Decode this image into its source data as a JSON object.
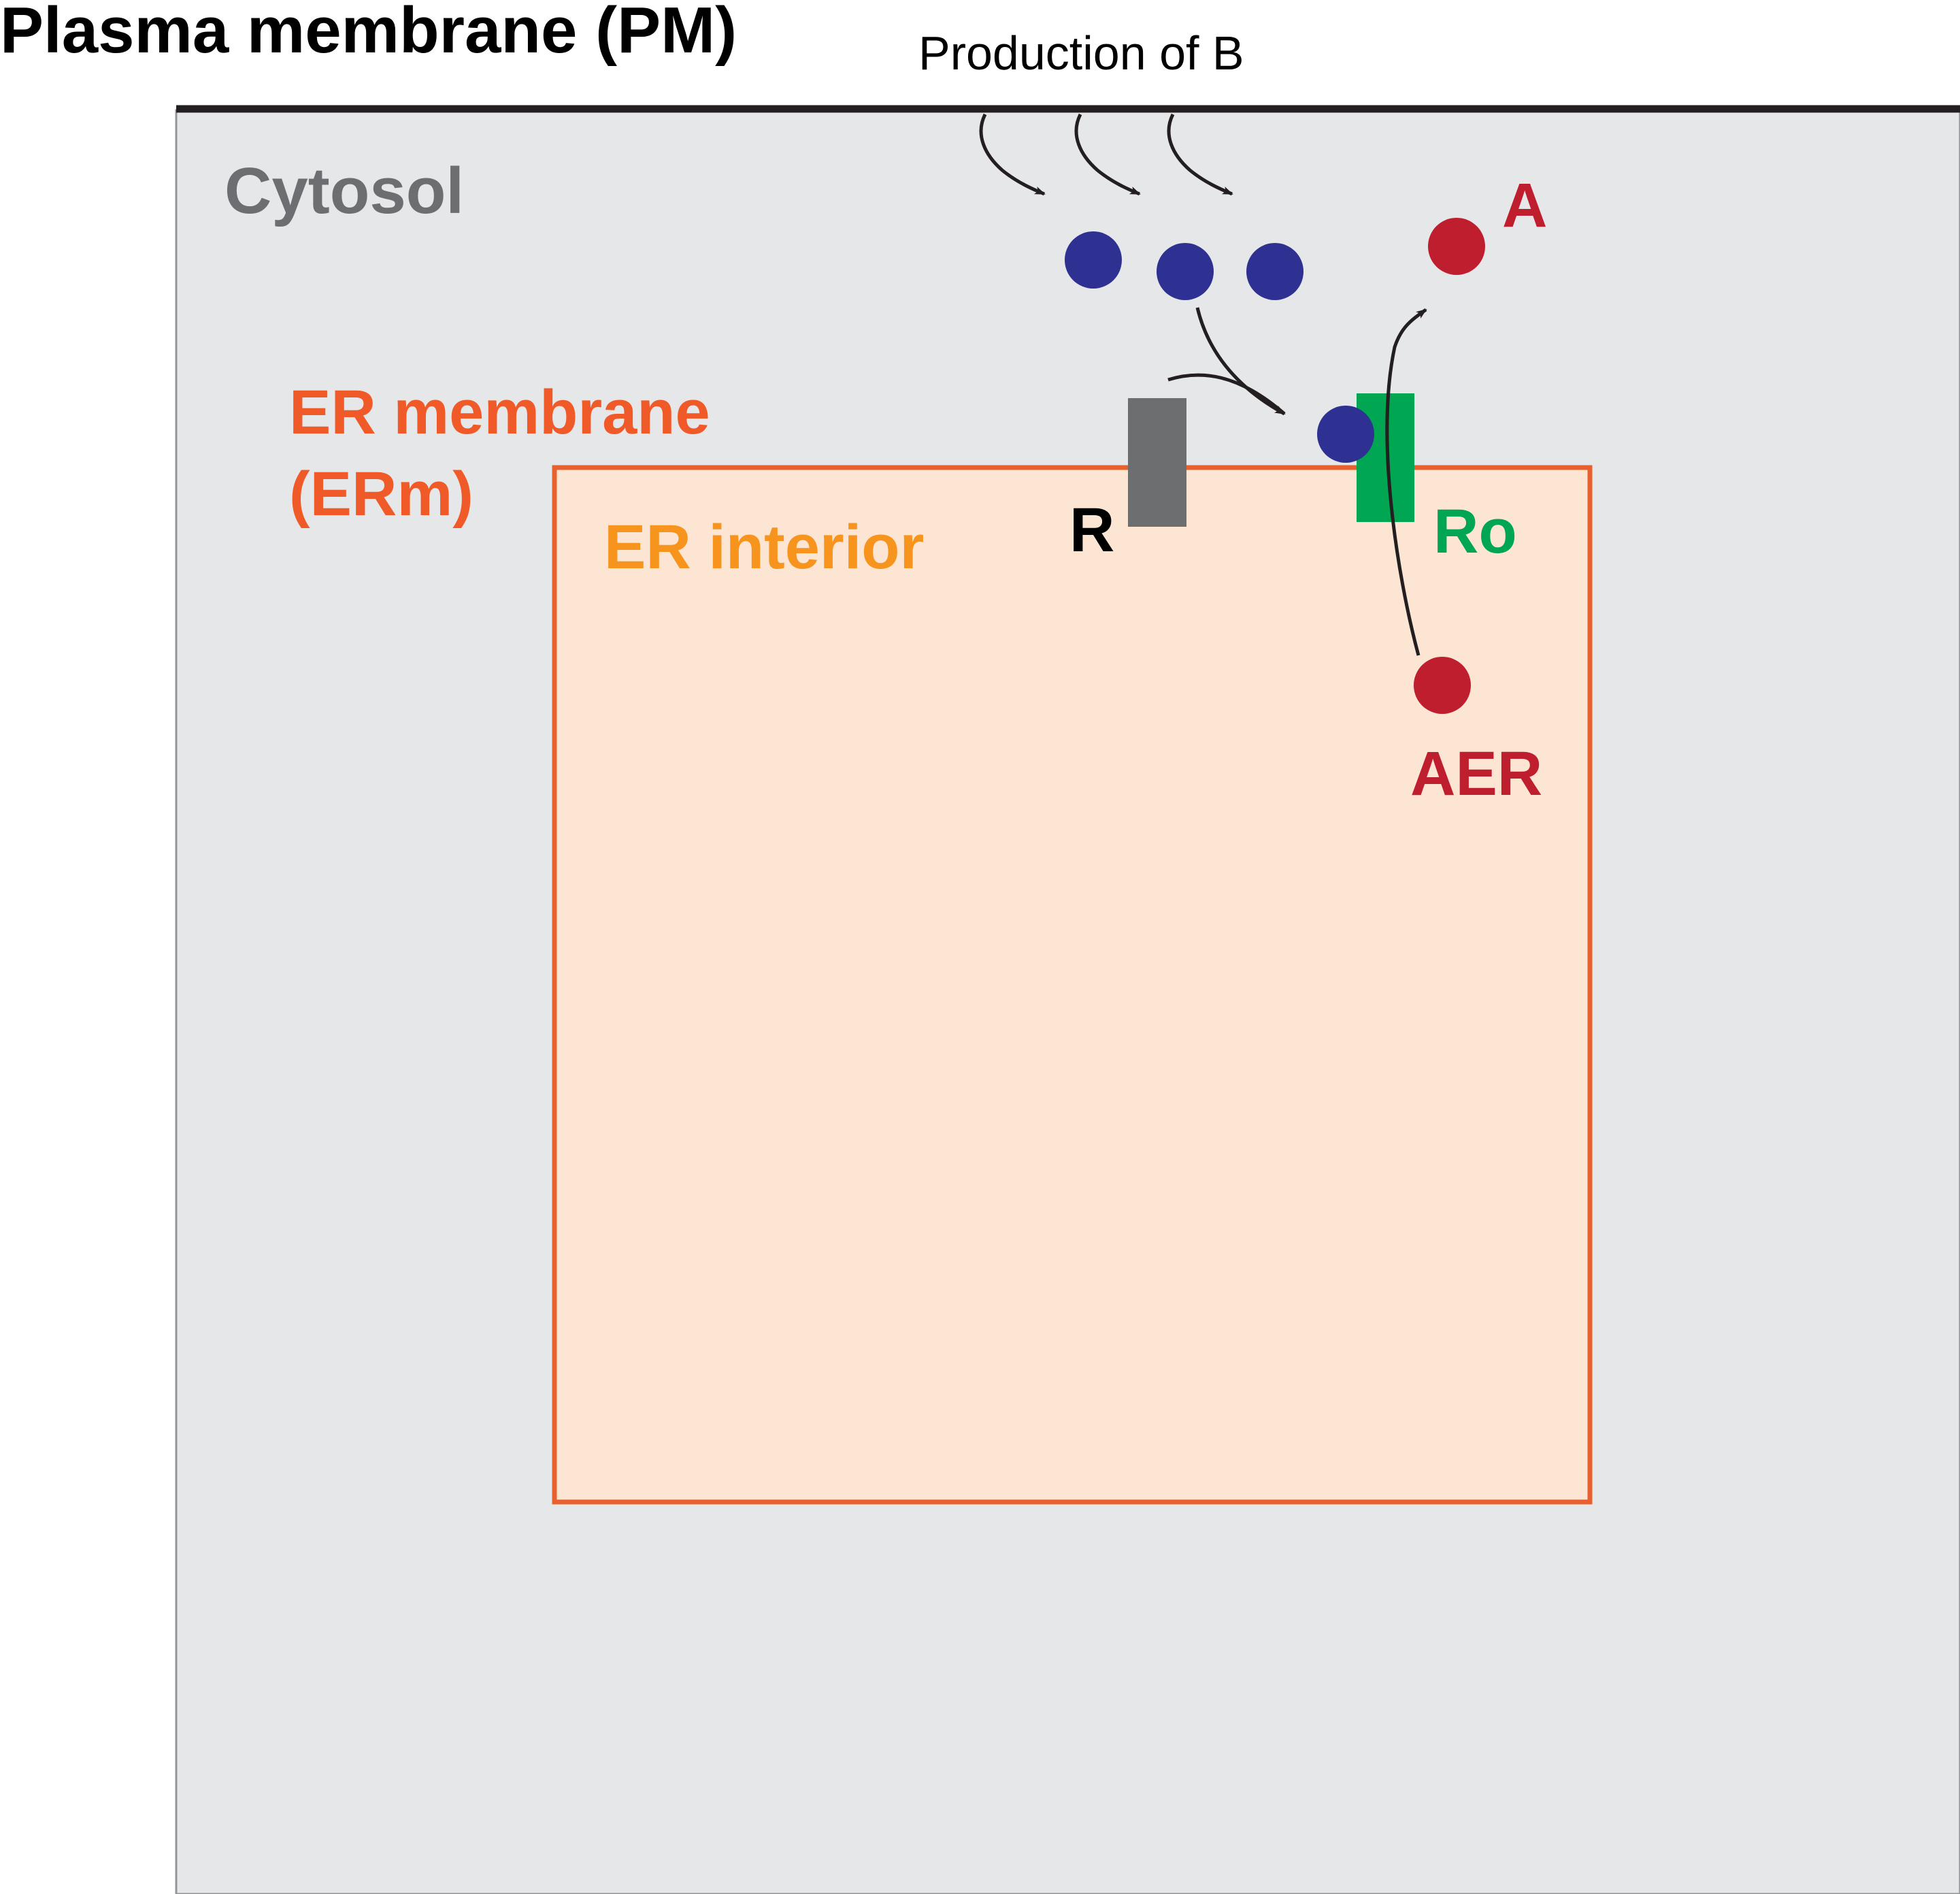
{
  "labels": {
    "plasma_membrane": "Plasma membrane (PM)",
    "production": "Production of B",
    "cytosol": "Cytosol",
    "er_membrane_line1": "ER membrane",
    "er_membrane_line2": "(ERm)",
    "er_interior": "ER interior",
    "receptor": "R",
    "ro": "Ro",
    "a": "A",
    "aer": "AER"
  },
  "colors": {
    "background": "#ffffff",
    "cytosol_fill": "#e6e7e9",
    "cytosol_border": "#939598",
    "plasma_membrane_line": "#231f20",
    "er_fill": "#fde5d3",
    "er_border": "#e8602d",
    "er_membrane_text": "#f05a28",
    "er_interior_text": "#f7941d",
    "cytosol_text": "#6d6e71",
    "molecule_b": "#2e3192",
    "molecule_a": "#be1e2d",
    "receptor_r": "#6d6e70",
    "receptor_ro": "#00a651",
    "arrow": "#231f20",
    "label_black": "#000000"
  },
  "icons": {
    "molecule_b": "blue-circle",
    "molecule_a": "red-circle",
    "arrow": "curved-arrow"
  }
}
